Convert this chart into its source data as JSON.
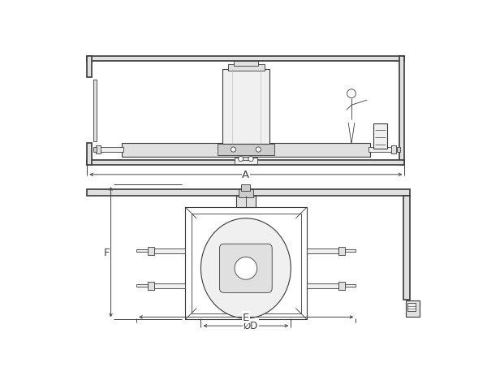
{
  "bg_color": "#ffffff",
  "line_color": "#3a3a3a",
  "dim_color": "#444444",
  "fill_light": "#f0f0f0",
  "fill_mid": "#e0e0e0",
  "fill_dark": "#cccccc",
  "label_A": "A",
  "label_D": "ØD",
  "label_E": "E",
  "label_F": "F"
}
